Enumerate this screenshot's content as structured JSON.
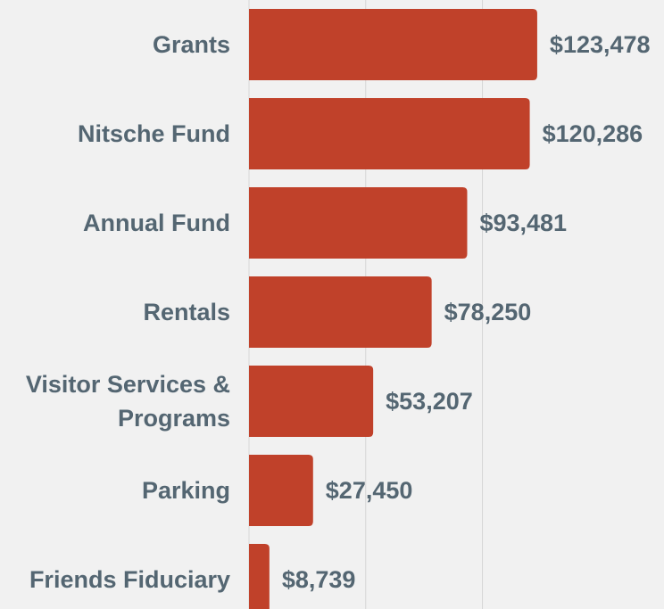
{
  "chart_data": {
    "type": "barh",
    "categories": [
      "Grants",
      "Nitsche Fund",
      "Annual Fund",
      "Rentals",
      "Visitor Services & Programs",
      "Parking",
      "Friends Fiduciary"
    ],
    "values": [
      123478,
      120286,
      93481,
      78250,
      53207,
      27450,
      8739
    ],
    "value_labels": [
      "$123,478",
      "$120,286",
      "$93,481",
      "$78,250",
      "$53,207",
      "$27,450",
      "$8,739"
    ],
    "color": "#c0412a",
    "xlim": [
      0,
      177800
    ],
    "xticks": [
      0,
      50000,
      100000
    ],
    "grid": true
  }
}
